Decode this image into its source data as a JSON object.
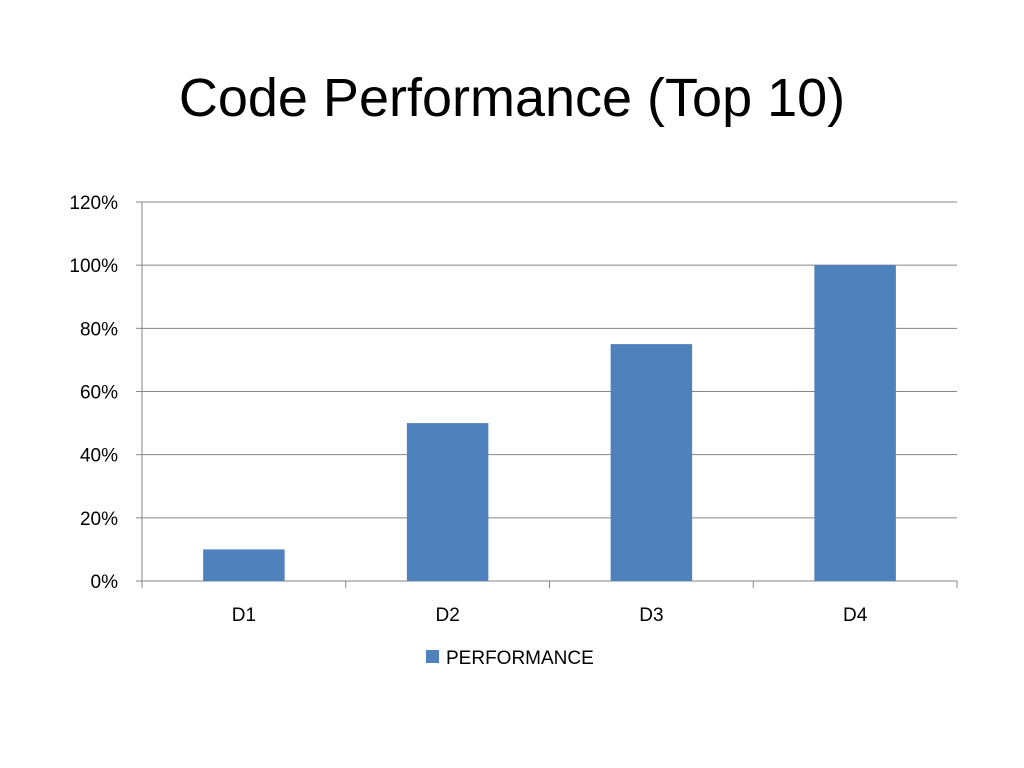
{
  "slide": {
    "title": "Code Performance (Top 10)"
  },
  "chart_data": {
    "type": "bar",
    "title": "",
    "xlabel": "",
    "ylabel": "",
    "categories": [
      "D1",
      "D2",
      "D3",
      "D4"
    ],
    "series": [
      {
        "name": "PERFORMANCE",
        "values": [
          10,
          50,
          75,
          100
        ],
        "color": "#4f81bd"
      }
    ],
    "ylim": [
      0,
      120
    ],
    "y_ticks": [
      0,
      20,
      40,
      60,
      80,
      100,
      120
    ],
    "y_tick_labels": [
      "0%",
      "20%",
      "40%",
      "60%",
      "80%",
      "100%",
      "120%"
    ],
    "value_format": "percent",
    "grid": true,
    "gridline_color": "#868686",
    "legend_position": "bottom"
  }
}
